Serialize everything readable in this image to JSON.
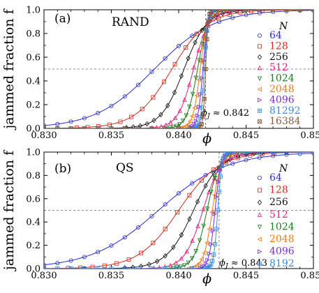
{
  "chart_data": [
    {
      "type": "line",
      "panel_label": "(a)",
      "title": "RAND",
      "xlabel": "ϕ",
      "ylabel": "jammed fraction f",
      "xlim": [
        0.83,
        0.85
      ],
      "ylim": [
        0.0,
        1.0
      ],
      "xticks": [
        "0.830",
        "0.835",
        "0.840",
        "0.845",
        "0.850"
      ],
      "yticks": [
        "0.0",
        "0.2",
        "0.4",
        "0.6",
        "0.8",
        "1.0"
      ],
      "reference_lines": {
        "y": 0.5,
        "x": 0.842
      },
      "annotation": "ϕ_J ≈ 0.842",
      "legend_title": "N",
      "legend_position": "right",
      "series": [
        {
          "name": "64",
          "color": "#2a2adb",
          "marker": "circle",
          "phi_half": 0.8382,
          "width": 0.0022
        },
        {
          "name": "128",
          "color": "#d42a1a",
          "marker": "square",
          "phi_half": 0.8395,
          "width": 0.00135
        },
        {
          "name": "256",
          "color": "#111111",
          "marker": "diamond",
          "phi_half": 0.8404,
          "width": 0.00085
        },
        {
          "name": "512",
          "color": "#e0207a",
          "marker": "triangle-up",
          "phi_half": 0.8411,
          "width": 0.00058
        },
        {
          "name": "1024",
          "color": "#1a7a1a",
          "marker": "triangle-down",
          "phi_half": 0.8414,
          "width": 0.0004
        },
        {
          "name": "2048",
          "color": "#f07a10",
          "marker": "triangle-left",
          "phi_half": 0.8416,
          "width": 0.00027
        },
        {
          "name": "4096",
          "color": "#7a2ad4",
          "marker": "triangle-right",
          "phi_half": 0.8418,
          "width": 0.00019
        },
        {
          "name": "81292",
          "color": "#3a8ae0",
          "marker": "square-plus",
          "phi_half": 0.8419,
          "width": 0.00013
        },
        {
          "name": "16384",
          "color": "#8a5a3a",
          "marker": "square-x",
          "phi_half": 0.842,
          "width": 9e-05
        }
      ]
    },
    {
      "type": "line",
      "panel_label": "(b)",
      "title": "QS",
      "xlabel": "ϕ",
      "ylabel": "jammed fraction f",
      "xlim": [
        0.83,
        0.85
      ],
      "ylim": [
        0.0,
        1.0
      ],
      "xticks": [
        "0.830",
        "0.835",
        "0.840",
        "0.845",
        "0.850"
      ],
      "yticks": [
        "0.0",
        "0.2",
        "0.4",
        "0.6",
        "0.8",
        "1.0"
      ],
      "reference_lines": {
        "y": 0.5,
        "x": 0.843
      },
      "annotation": "ϕ_J ≈ 0.843",
      "legend_title": "N",
      "legend_position": "right",
      "series": [
        {
          "name": "64",
          "color": "#2a2adb",
          "marker": "circle",
          "phi_half": 0.8385,
          "width": 0.0025
        },
        {
          "name": "128",
          "color": "#d42a1a",
          "marker": "square",
          "phi_half": 0.84,
          "width": 0.0015
        },
        {
          "name": "256",
          "color": "#111111",
          "marker": "diamond",
          "phi_half": 0.8411,
          "width": 0.001
        },
        {
          "name": "512",
          "color": "#e0207a",
          "marker": "triangle-up",
          "phi_half": 0.8418,
          "width": 0.00068
        },
        {
          "name": "1024",
          "color": "#1a7a1a",
          "marker": "triangle-down",
          "phi_half": 0.8421,
          "width": 0.00047
        },
        {
          "name": "2048",
          "color": "#f07a10",
          "marker": "triangle-left",
          "phi_half": 0.8425,
          "width": 0.00032
        },
        {
          "name": "4096",
          "color": "#7a2ad4",
          "marker": "triangle-right",
          "phi_half": 0.8427,
          "width": 0.00022
        },
        {
          "name": "8192",
          "color": "#3a8ae0",
          "marker": "square-plus",
          "phi_half": 0.8429,
          "width": 0.00015
        }
      ]
    }
  ]
}
